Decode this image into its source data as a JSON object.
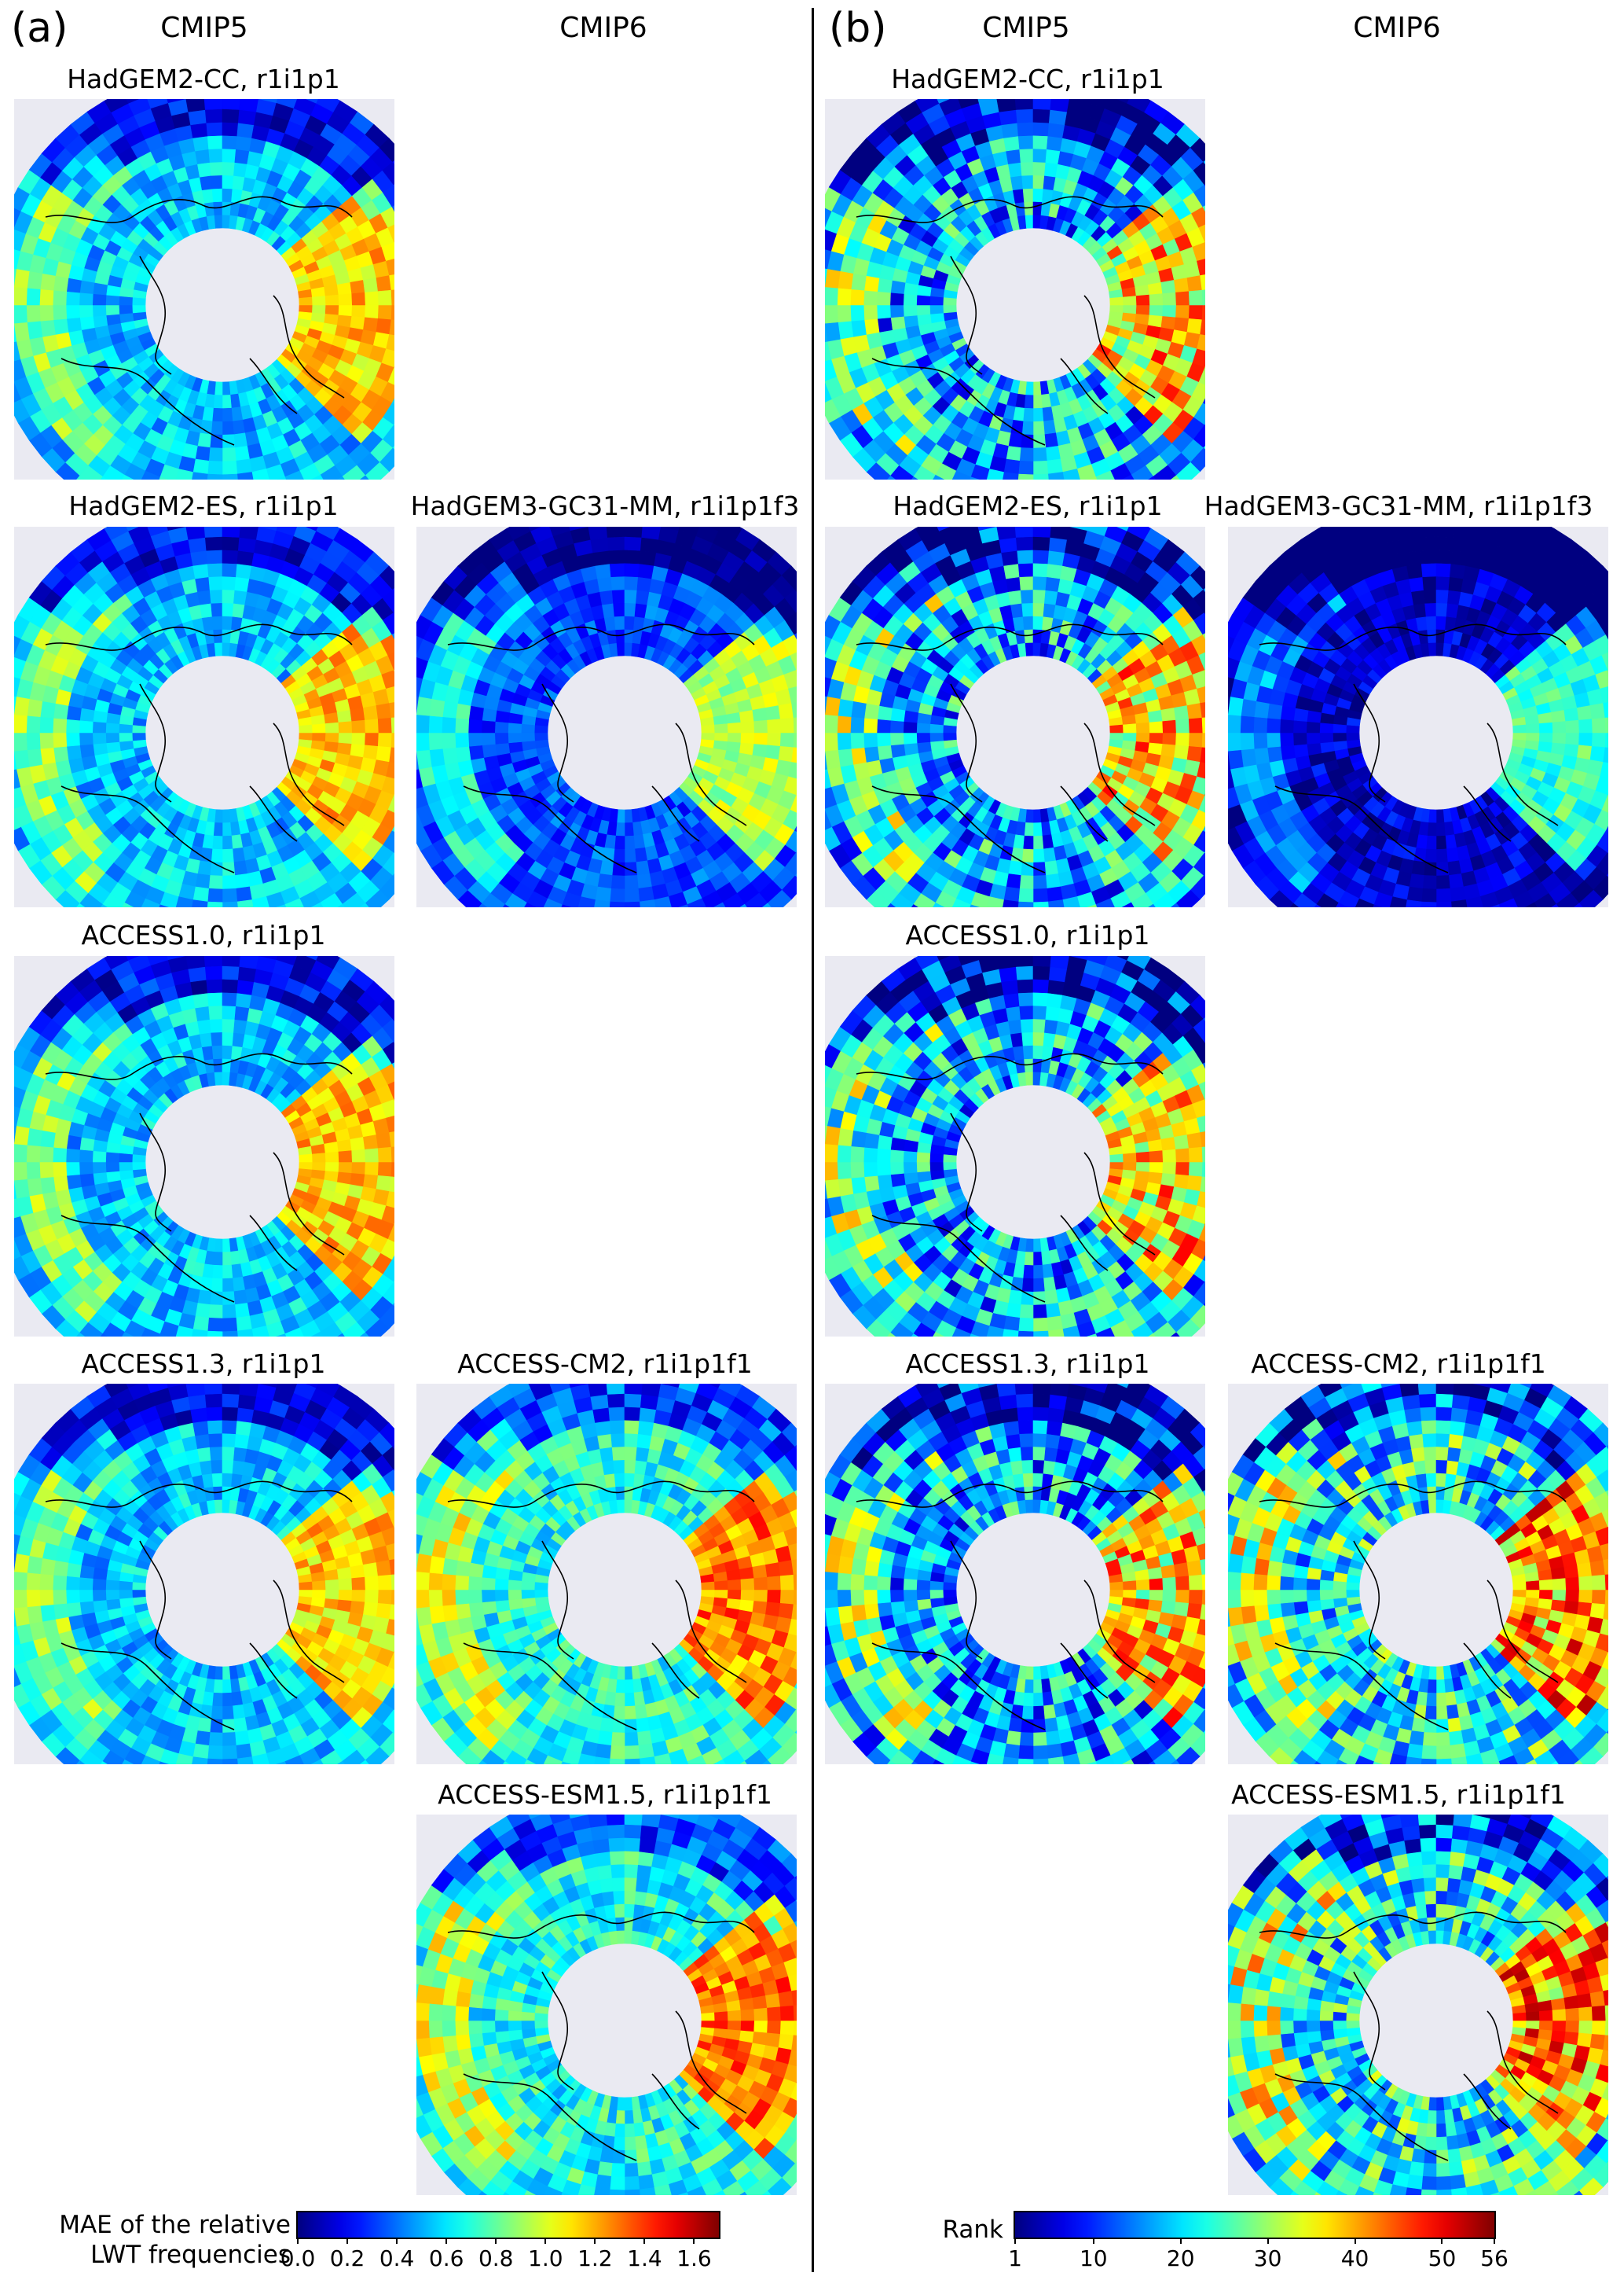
{
  "panels": {
    "a": {
      "letter": "(a)",
      "cmip5": "CMIP5",
      "cmip6": "CMIP6",
      "colorbar": {
        "label_line1": "MAE of the relative",
        "label_line2": "LWT frequencies",
        "ticks": [
          "0.0",
          "0.2",
          "0.4",
          "0.6",
          "0.8",
          "1.0",
          "1.2",
          "1.4",
          "1.6"
        ],
        "range": [
          0.0,
          1.7
        ],
        "colormap": "jet"
      }
    },
    "b": {
      "letter": "(b)",
      "cmip5": "CMIP5",
      "cmip6": "CMIP6",
      "colorbar": {
        "label": "Rank",
        "ticks": [
          "1",
          "10",
          "20",
          "30",
          "40",
          "50",
          "56"
        ],
        "range": [
          1,
          56
        ],
        "colormap": "jet"
      }
    }
  },
  "maps": {
    "a_r1_c5": "HadGEM2-CC, r1i1p1",
    "a_r2_c5": "HadGEM2-ES, r1i1p1",
    "a_r2_c6": "HadGEM3-GC31-MM, r1i1p1f3",
    "a_r3_c5": "ACCESS1.0, r1i1p1",
    "a_r4_c5": "ACCESS1.3, r1i1p1",
    "a_r4_c6": "ACCESS-CM2, r1i1p1f1",
    "a_r5_c6": "ACCESS-ESM1.5, r1i1p1f1",
    "b_r1_c5": "HadGEM2-CC, r1i1p1",
    "b_r2_c5": "HadGEM2-ES, r1i1p1",
    "b_r2_c6": "HadGEM3-GC31-MM, r1i1p1f3",
    "b_r3_c5": "ACCESS1.0, r1i1p1",
    "b_r4_c5": "ACCESS1.3, r1i1p1",
    "b_r4_c6": "ACCESS-CM2, r1i1p1f1",
    "b_r5_c6": "ACCESS-ESM1.5, r1i1p1f1"
  },
  "colors": {
    "map_background": "#eaeaf2",
    "jet_low": "#00007f",
    "jet_high": "#7f0000"
  }
}
